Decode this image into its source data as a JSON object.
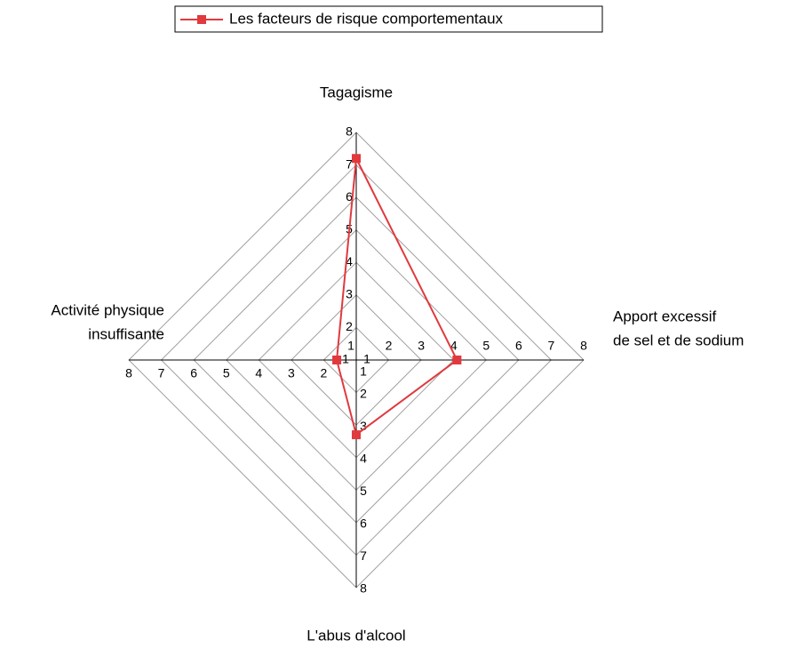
{
  "chart_data": {
    "type": "radar",
    "categories": [
      [
        "Tagagisme"
      ],
      [
        "Apport excessif",
        "de sel et de sodium"
      ],
      [
        "L'abus d'alcool"
      ],
      [
        "Activité physique",
        "insuffisante"
      ]
    ],
    "series": [
      {
        "name": "Les facteurs de risque comportementaux",
        "color": "#e0393e",
        "values": [
          7.2,
          4.1,
          3.3,
          1.6
        ]
      }
    ],
    "rlim": [
      1,
      8
    ],
    "rticks": [
      1,
      2,
      3,
      4,
      5,
      6,
      7,
      8
    ],
    "grid": true,
    "legend": "top"
  }
}
